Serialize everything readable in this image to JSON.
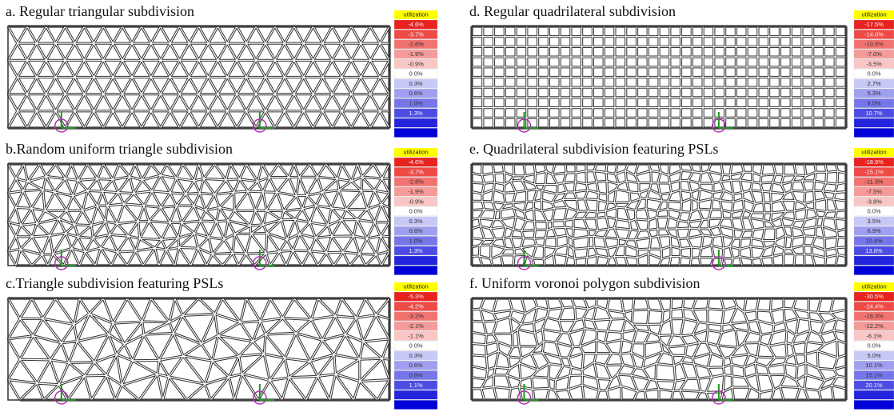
{
  "panels": [
    {
      "title": "a. Regular triangular subdivision",
      "legend": {
        "header": "utilization",
        "labels": [
          "-4.6%",
          "-3.7%",
          "-2.8%",
          "-1.9%",
          "-0.9%",
          "0.0%",
          "0.3%",
          "0.6%",
          "1.0%",
          "1.3%"
        ]
      }
    },
    {
      "title": "b.Random uniform triangle subdivision",
      "legend": {
        "header": "utilization",
        "labels": [
          "-4.6%",
          "-3.7%",
          "-2.8%",
          "-1.9%",
          "-0.9%",
          "0.0%",
          "0.3%",
          "0.6%",
          "1.0%",
          "1.3%"
        ]
      }
    },
    {
      "title": "c.Triangle subdivision featuring PSLs",
      "legend": {
        "header": "utilization",
        "labels": [
          "-5.3%",
          "-4.2%",
          "-3.2%",
          "-2.1%",
          "-1.1%",
          "0.0%",
          "0.3%",
          "0.6%",
          "0.8%",
          "1.1%"
        ]
      }
    },
    {
      "title": "d. Regular quadrilateral subdivision",
      "legend": {
        "header": "utilization",
        "labels": [
          "-17.5%",
          "-14.0%",
          "-10.5%",
          "-7.0%",
          "-3.5%",
          "0.0%",
          "2.7%",
          "5.3%",
          "8.0%",
          "10.7%"
        ]
      }
    },
    {
      "title": "e. Quadrilateral subdivision featuring PSLs",
      "legend": {
        "header": "utilization",
        "labels": [
          "-18.9%",
          "-15.1%",
          "-11.3%",
          "-7.5%",
          "-3.8%",
          "0.0%",
          "3.5%",
          "6.9%",
          "10.4%",
          "13.8%"
        ]
      }
    },
    {
      "title": "f. Uniform voronoi polygon subdivision",
      "legend": {
        "header": "utilization",
        "labels": [
          "-30.5%",
          "-24.4%",
          "-18.3%",
          "-12.2%",
          "-6.1%",
          "0.0%",
          "5.0%",
          "10.1%",
          "15.1%",
          "20.1%"
        ]
      }
    }
  ]
}
